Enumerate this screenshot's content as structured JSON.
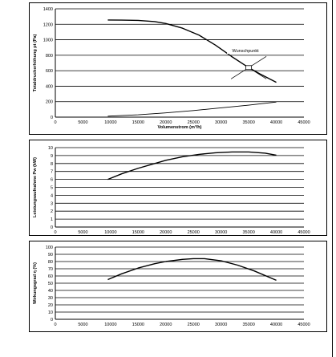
{
  "chart_data": [
    {
      "type": "line",
      "xlabel": "Volumenstrom (m³/h)",
      "ylabel": "Totaldruckerhöhung pt (Pa)",
      "xlim": [
        0,
        45000
      ],
      "ylim": [
        0,
        1400
      ],
      "xticks": [
        "0",
        "5000",
        "10000",
        "15000",
        "20000",
        "25000",
        "30000",
        "35000",
        "40000",
        "45000"
      ],
      "yticks": [
        "0",
        "200",
        "400",
        "600",
        "800",
        "1000",
        "1200",
        "1400"
      ],
      "grid": "horizontal",
      "series": [
        {
          "values": [
            [
              9500,
              1255
            ],
            [
              12000,
              1254
            ],
            [
              15000,
              1250
            ],
            [
              18000,
              1235
            ],
            [
              20000,
              1210
            ],
            [
              23000,
              1150
            ],
            [
              26000,
              1060
            ],
            [
              29000,
              930
            ],
            [
              32000,
              780
            ],
            [
              35000,
              640
            ],
            [
              37000,
              560
            ],
            [
              40000,
              450
            ]
          ]
        },
        {
          "values": [
            [
              9500,
              12
            ],
            [
              15000,
              30
            ],
            [
              20000,
              55
            ],
            [
              25000,
              85
            ],
            [
              30000,
              120
            ],
            [
              35000,
              155
            ],
            [
              40000,
              195
            ]
          ]
        }
      ],
      "annotations": [
        {
          "text": "Wunschpunkt",
          "x": 35000,
          "y": 640
        }
      ]
    },
    {
      "type": "line",
      "xlabel": "",
      "ylabel": "Leistungsaufnahme Pw (kW)",
      "xlim": [
        0,
        45000
      ],
      "ylim": [
        0,
        10
      ],
      "xticks": [
        "0",
        "5000",
        "10000",
        "15000",
        "20000",
        "25000",
        "30000",
        "35000",
        "40000",
        "45000"
      ],
      "yticks": [
        "0",
        "1",
        "2",
        "3",
        "4",
        "5",
        "6",
        "7",
        "8",
        "9",
        "10"
      ],
      "grid": "horizontal",
      "series": [
        {
          "values": [
            [
              9500,
              6.0
            ],
            [
              12000,
              6.7
            ],
            [
              15000,
              7.4
            ],
            [
              18000,
              8.0
            ],
            [
              20000,
              8.4
            ],
            [
              23000,
              8.85
            ],
            [
              26000,
              9.15
            ],
            [
              29000,
              9.35
            ],
            [
              32000,
              9.45
            ],
            [
              35000,
              9.45
            ],
            [
              38000,
              9.3
            ],
            [
              40000,
              9.05
            ]
          ]
        }
      ]
    },
    {
      "type": "line",
      "xlabel": "",
      "ylabel": "Wirkungsgrad η (%)",
      "xlim": [
        0,
        45000
      ],
      "ylim": [
        0,
        100
      ],
      "xticks": [
        "0",
        "5000",
        "10000",
        "15000",
        "20000",
        "25000",
        "30000",
        "35000",
        "40000",
        "45000"
      ],
      "yticks": [
        "0",
        "10",
        "20",
        "30",
        "40",
        "50",
        "60",
        "70",
        "80",
        "90",
        "100"
      ],
      "grid": "horizontal",
      "series": [
        {
          "values": [
            [
              9500,
              55
            ],
            [
              12000,
              63
            ],
            [
              15000,
              71
            ],
            [
              18000,
              77
            ],
            [
              20000,
              80
            ],
            [
              23000,
              83
            ],
            [
              25000,
              84
            ],
            [
              27000,
              84
            ],
            [
              30000,
              81
            ],
            [
              33000,
              75
            ],
            [
              36000,
              67
            ],
            [
              40000,
              54
            ]
          ]
        }
      ]
    }
  ]
}
